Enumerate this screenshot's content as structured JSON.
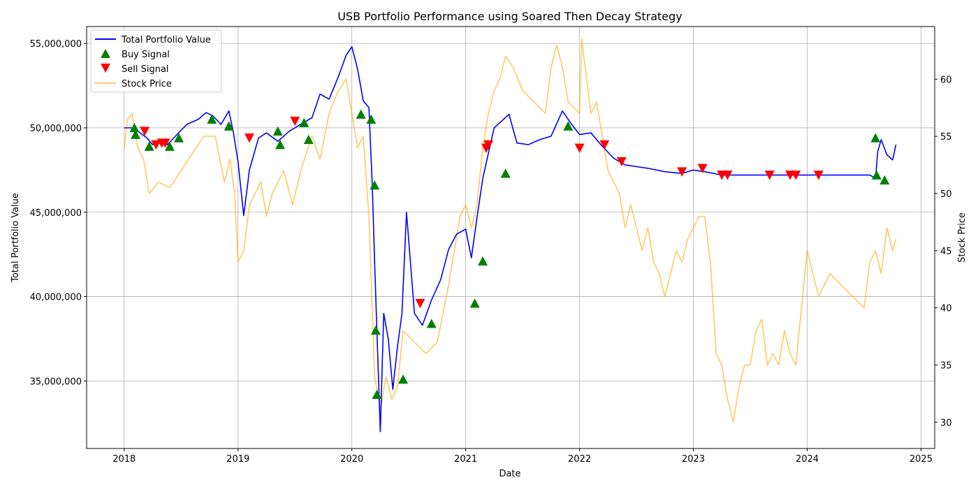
{
  "chart_data": {
    "type": "line",
    "title": "USB Portfolio Performance using Soared Then Decay Strategy",
    "xlabel": "Date",
    "ylabel": "Total Portfolio Value",
    "y2label": "Stock Price",
    "xlim": [
      2017.67,
      2025.12
    ],
    "ylim": [
      31000000,
      56000000
    ],
    "y2lim": [
      27.7,
      64.6
    ],
    "x_ticks": [
      2018,
      2019,
      2020,
      2021,
      2022,
      2023,
      2024,
      2025
    ],
    "x_tick_labels": [
      "2018",
      "2019",
      "2020",
      "2021",
      "2022",
      "2023",
      "2024",
      "2025"
    ],
    "y_ticks": [
      35000000,
      40000000,
      45000000,
      50000000,
      55000000
    ],
    "y_tick_labels": [
      "35,000,000",
      "40,000,000",
      "45,000,000",
      "50,000,000",
      "55,000,000"
    ],
    "y2_ticks": [
      30,
      35,
      40,
      45,
      50,
      55,
      60
    ],
    "y2_tick_labels": [
      "30",
      "35",
      "40",
      "45",
      "50",
      "55",
      "60"
    ],
    "grid": true,
    "legend_position": "top-left",
    "legend": [
      "Total Portfolio Value",
      "Buy Signal",
      "Sell Signal",
      "Stock Price"
    ],
    "colors": {
      "portfolio": "#0000ff",
      "buy": "#008000",
      "sell": "#ff0000",
      "stock": "#ffa500"
    },
    "series": [
      {
        "name": "Total Portfolio Value",
        "axis": "left",
        "x": [
          2018.0,
          2018.08,
          2018.12,
          2018.2,
          2018.25,
          2018.3,
          2018.38,
          2018.45,
          2018.55,
          2018.65,
          2018.72,
          2018.78,
          2018.85,
          2018.92,
          2018.96,
          2019.0,
          2019.05,
          2019.1,
          2019.18,
          2019.25,
          2019.35,
          2019.45,
          2019.55,
          2019.65,
          2019.72,
          2019.8,
          2019.88,
          2019.95,
          2020.0,
          2020.05,
          2020.1,
          2020.15,
          2020.18,
          2020.2,
          2020.22,
          2020.25,
          2020.28,
          2020.32,
          2020.36,
          2020.4,
          2020.44,
          2020.48,
          2020.55,
          2020.62,
          2020.7,
          2020.78,
          2020.85,
          2020.92,
          2021.0,
          2021.05,
          2021.1,
          2021.15,
          2021.2,
          2021.25,
          2021.3,
          2021.38,
          2021.45,
          2021.55,
          2021.65,
          2021.75,
          2021.85,
          2021.92,
          2022.0,
          2022.1,
          2022.2,
          2022.3,
          2022.4,
          2022.5,
          2022.6,
          2022.75,
          2022.9,
          2023.0,
          2023.1,
          2023.25,
          2023.5,
          2023.8,
          2024.0,
          2024.3,
          2024.55,
          2024.6,
          2024.62,
          2024.65,
          2024.7,
          2024.75,
          2024.78
        ],
        "values": [
          50000000,
          50000000,
          49800000,
          49400000,
          49000000,
          49200000,
          49000000,
          49500000,
          50200000,
          50500000,
          50900000,
          50700000,
          50200000,
          51000000,
          49700000,
          48000000,
          44800000,
          47500000,
          49400000,
          49700000,
          49200000,
          49800000,
          50200000,
          50600000,
          52000000,
          51700000,
          53000000,
          54300000,
          54800000,
          53500000,
          51600000,
          51200000,
          46500000,
          42000000,
          38000000,
          32000000,
          39000000,
          37500000,
          34500000,
          37000000,
          39000000,
          45000000,
          39000000,
          38300000,
          39800000,
          41000000,
          42800000,
          43700000,
          44000000,
          42300000,
          44700000,
          47000000,
          48500000,
          50000000,
          50300000,
          50800000,
          49100000,
          49000000,
          49300000,
          49500000,
          51000000,
          50300000,
          49600000,
          49700000,
          48900000,
          48200000,
          47800000,
          47700000,
          47600000,
          47400000,
          47300000,
          47500000,
          47400000,
          47200000,
          47200000,
          47200000,
          47200000,
          47200000,
          47200000,
          47000000,
          48600000,
          49300000,
          48400000,
          48100000,
          49000000
        ]
      },
      {
        "name": "Stock Price",
        "axis": "right",
        "x": [
          2018.0,
          2018.03,
          2018.07,
          2018.12,
          2018.17,
          2018.22,
          2018.3,
          2018.4,
          2018.5,
          2018.6,
          2018.7,
          2018.8,
          2018.88,
          2018.93,
          2018.97,
          2019.0,
          2019.05,
          2019.1,
          2019.2,
          2019.25,
          2019.3,
          2019.4,
          2019.48,
          2019.55,
          2019.65,
          2019.72,
          2019.8,
          2019.88,
          2019.95,
          2020.0,
          2020.05,
          2020.1,
          2020.15,
          2020.2,
          2020.25,
          2020.3,
          2020.35,
          2020.4,
          2020.45,
          2020.55,
          2020.65,
          2020.75,
          2020.85,
          2020.95,
          2021.0,
          2021.05,
          2021.1,
          2021.15,
          2021.2,
          2021.25,
          2021.3,
          2021.35,
          2021.42,
          2021.5,
          2021.6,
          2021.7,
          2021.75,
          2021.8,
          2021.85,
          2021.9,
          2022.0,
          2022.02,
          2022.05,
          2022.1,
          2022.15,
          2022.2,
          2022.25,
          2022.3,
          2022.35,
          2022.4,
          2022.45,
          2022.5,
          2022.55,
          2022.6,
          2022.65,
          2022.7,
          2022.75,
          2022.8,
          2022.85,
          2022.9,
          2022.95,
          2023.0,
          2023.05,
          2023.1,
          2023.15,
          2023.2,
          2023.25,
          2023.3,
          2023.35,
          2023.4,
          2023.45,
          2023.5,
          2023.55,
          2023.6,
          2023.65,
          2023.7,
          2023.75,
          2023.8,
          2023.85,
          2023.9,
          2024.0,
          2024.1,
          2024.2,
          2024.3,
          2024.4,
          2024.5,
          2024.55,
          2024.6,
          2024.65,
          2024.7,
          2024.75,
          2024.78
        ],
        "values": [
          54,
          56.5,
          57,
          54,
          53,
          50,
          51,
          50.5,
          52,
          53.5,
          55,
          55,
          51,
          53,
          50,
          44,
          45,
          49,
          51,
          48,
          50,
          52,
          49,
          52,
          55,
          53,
          57,
          59,
          60,
          57,
          54,
          55,
          48,
          34,
          31,
          34,
          32,
          33,
          38,
          37,
          36,
          37,
          42,
          48,
          49,
          47,
          49,
          54,
          57,
          59,
          60,
          62,
          61,
          59,
          58,
          57,
          61,
          63,
          61,
          58,
          57,
          63.5,
          61,
          57,
          58,
          55,
          52,
          51,
          50,
          47,
          49,
          47,
          45,
          47,
          44,
          43,
          41,
          43,
          45,
          44,
          46,
          47,
          48,
          48,
          44,
          36,
          35,
          32,
          30,
          33,
          35,
          35,
          38,
          39,
          35,
          36,
          35,
          38,
          36,
          35,
          45,
          41,
          43,
          42,
          41,
          40,
          44,
          45,
          43,
          47,
          45,
          46
        ]
      }
    ],
    "buy_signals": {
      "name": "Buy Signal",
      "x": [
        2018.09,
        2018.1,
        2018.22,
        2018.4,
        2018.48,
        2018.77,
        2018.92,
        2019.35,
        2019.37,
        2019.58,
        2019.62,
        2020.08,
        2020.17,
        2020.2,
        2020.21,
        2020.22,
        2020.45,
        2020.7,
        2021.08,
        2021.15,
        2021.35,
        2021.9,
        2024.6,
        2024.61,
        2024.68
      ],
      "values": [
        50000000,
        49600000,
        48900000,
        48900000,
        49400000,
        50500000,
        50100000,
        49800000,
        49000000,
        50300000,
        49300000,
        50800000,
        50500000,
        46600000,
        38000000,
        34200000,
        35100000,
        38400000,
        39600000,
        42100000,
        47300000,
        50100000,
        49400000,
        47200000,
        46900000
      ]
    },
    "sell_signals": {
      "name": "Sell Signal",
      "x": [
        2018.18,
        2018.28,
        2018.33,
        2018.36,
        2019.1,
        2019.5,
        2020.6,
        2021.18,
        2021.2,
        2022.0,
        2022.22,
        2022.37,
        2022.9,
        2023.08,
        2023.25,
        2023.3,
        2023.67,
        2023.85,
        2023.9,
        2024.1
      ],
      "values": [
        49800000,
        49000000,
        49100000,
        49100000,
        49400000,
        50400000,
        39600000,
        48800000,
        49000000,
        48800000,
        49000000,
        48000000,
        47400000,
        47600000,
        47200000,
        47200000,
        47200000,
        47200000,
        47200000,
        47200000
      ]
    }
  }
}
